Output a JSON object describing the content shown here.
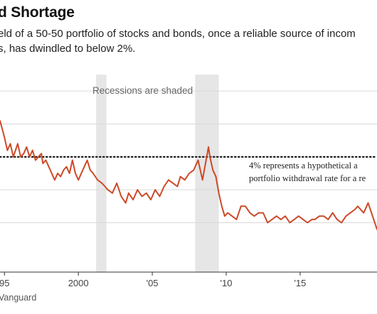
{
  "title": "d Shortage",
  "subtitle_lines": [
    "eld of a 50-50 portfolio of stocks and bonds, once a reliable source of incom",
    "s, has dwindled to below 2%."
  ],
  "source": "Vanguard",
  "chart_data": {
    "type": "line",
    "title": "d Shortage",
    "xlabel": "",
    "ylabel": "",
    "xlim": [
      1994.7,
      2020.2
    ],
    "ylim": [
      0.5,
      6.5
    ],
    "grid": "horizontal",
    "x_ticks": [
      {
        "value": 1995,
        "label": "95"
      },
      {
        "value": 2000,
        "label": "2000"
      },
      {
        "value": 2005,
        "label": "'05"
      },
      {
        "value": 2010,
        "label": "'10"
      },
      {
        "value": 2015,
        "label": "'15"
      }
    ],
    "y_gridlines": [
      2,
      3,
      5,
      6
    ],
    "recessions": [
      {
        "start": 2001.2,
        "end": 2001.9
      },
      {
        "start": 2007.9,
        "end": 2009.5
      }
    ],
    "recession_label": "Recessions are shaded",
    "reference_line": {
      "value": 4,
      "label_lines": [
        "4% represents a hypothetical a",
        "portfolio withdrawal rate for a re"
      ]
    },
    "series": [
      {
        "color": "#cc4a28",
        "x": [
          1994.7,
          1995.0,
          1995.2,
          1995.4,
          1995.6,
          1995.9,
          1996.1,
          1996.3,
          1996.5,
          1996.7,
          1996.9,
          1997.1,
          1997.3,
          1997.5,
          1997.6,
          1997.8,
          1998.0,
          1998.2,
          1998.4,
          1998.6,
          1998.8,
          1999.0,
          1999.2,
          1999.4,
          1999.6,
          1999.8,
          2000.0,
          2000.2,
          2000.4,
          2000.6,
          2000.8,
          2001.0,
          2001.3,
          2001.6,
          2001.8,
          2002.0,
          2002.3,
          2002.6,
          2002.9,
          2003.2,
          2003.4,
          2003.7,
          2004.0,
          2004.3,
          2004.6,
          2004.9,
          2005.2,
          2005.5,
          2005.8,
          2006.1,
          2006.4,
          2006.7,
          2006.9,
          2007.2,
          2007.5,
          2007.8,
          2008.1,
          2008.4,
          2008.6,
          2008.8,
          2008.9,
          2009.1,
          2009.3,
          2009.5,
          2009.7,
          2009.9,
          2010.1,
          2010.4,
          2010.7,
          2011.0,
          2011.3,
          2011.6,
          2011.9,
          2012.2,
          2012.5,
          2012.8,
          2013.1,
          2013.4,
          2013.7,
          2014.0,
          2014.3,
          2014.6,
          2014.9,
          2015.2,
          2015.5,
          2015.8,
          2016.0,
          2016.3,
          2016.6,
          2016.9,
          2017.2,
          2017.5,
          2017.8,
          2018.1,
          2018.4,
          2018.7,
          2018.9,
          2019.1,
          2019.3,
          2019.6,
          2019.9,
          2020.2
        ],
        "y": [
          5.1,
          4.6,
          4.2,
          4.4,
          4.0,
          4.4,
          4.0,
          4.1,
          4.3,
          4.0,
          4.2,
          3.9,
          4.0,
          4.1,
          3.8,
          3.9,
          3.7,
          3.5,
          3.3,
          3.5,
          3.4,
          3.6,
          3.7,
          3.5,
          3.9,
          3.5,
          3.3,
          3.5,
          3.7,
          3.9,
          3.6,
          3.5,
          3.3,
          3.2,
          3.1,
          3.0,
          2.9,
          3.2,
          2.8,
          2.6,
          2.9,
          2.7,
          3.0,
          2.8,
          2.9,
          2.7,
          3.0,
          2.8,
          3.1,
          3.3,
          3.2,
          3.1,
          3.4,
          3.3,
          3.5,
          3.6,
          3.9,
          3.3,
          3.8,
          4.3,
          4.0,
          3.6,
          3.4,
          2.9,
          2.5,
          2.2,
          2.3,
          2.2,
          2.1,
          2.5,
          2.5,
          2.3,
          2.2,
          2.3,
          2.3,
          2.0,
          2.1,
          2.2,
          2.1,
          2.2,
          2.0,
          2.1,
          2.2,
          2.1,
          2.0,
          2.1,
          2.1,
          2.2,
          2.2,
          2.1,
          2.3,
          2.1,
          2.0,
          2.2,
          2.3,
          2.4,
          2.5,
          2.4,
          2.3,
          2.6,
          2.2,
          1.8
        ]
      }
    ]
  }
}
